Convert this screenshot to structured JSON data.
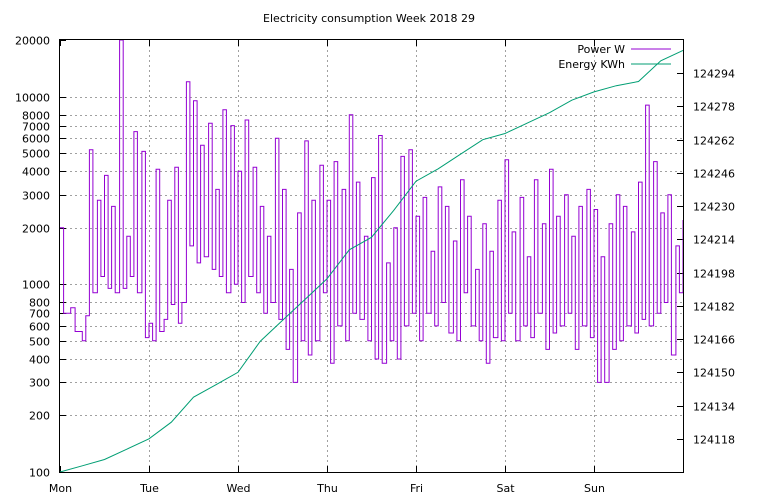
{
  "chart_data": {
    "type": "line",
    "title": "Electricity consumption Week 2018 29",
    "xlabel": "",
    "ylabel": "",
    "x_ticks": [
      "Mon",
      "Tue",
      "Wed",
      "Thu",
      "Fri",
      "Sat",
      "Sun"
    ],
    "xlim": [
      0,
      7
    ],
    "y_scale": "log",
    "ylim": [
      100,
      20000
    ],
    "y_ticks": [
      "100",
      "200",
      "300",
      "400",
      "500",
      "600",
      "700",
      "800",
      "1000",
      "2000",
      "3000",
      "4000",
      "5000",
      "6000",
      "7000",
      "8000",
      "10000",
      "20000"
    ],
    "y_tick_values": [
      100,
      200,
      300,
      400,
      500,
      600,
      700,
      800,
      1000,
      2000,
      3000,
      4000,
      5000,
      6000,
      7000,
      8000,
      10000,
      20000
    ],
    "y2lim": [
      124102,
      124310
    ],
    "y2_ticks": [
      "124118",
      "124134",
      "124150",
      "124166",
      "124182",
      "124198",
      "124214",
      "124230",
      "124246",
      "124262",
      "124278",
      "124294"
    ],
    "y2_tick_values": [
      124118,
      124134,
      124150,
      124166,
      124182,
      124198,
      124214,
      124230,
      124246,
      124262,
      124278,
      124294
    ],
    "grid": true,
    "legend_position": "top-right",
    "colors": {
      "power": "#9400d3",
      "energy": "#009e73"
    },
    "series": [
      {
        "name": "Power W",
        "axis": "left",
        "x": [
          0.0,
          0.04,
          0.08,
          0.12,
          0.17,
          0.21,
          0.25,
          0.29,
          0.33,
          0.37,
          0.42,
          0.46,
          0.5,
          0.54,
          0.58,
          0.62,
          0.67,
          0.71,
          0.75,
          0.79,
          0.83,
          0.87,
          0.92,
          0.96,
          1.0,
          1.04,
          1.08,
          1.12,
          1.17,
          1.21,
          1.25,
          1.29,
          1.33,
          1.37,
          1.42,
          1.46,
          1.5,
          1.54,
          1.58,
          1.62,
          1.67,
          1.71,
          1.75,
          1.79,
          1.83,
          1.87,
          1.92,
          1.96,
          2.0,
          2.04,
          2.08,
          2.12,
          2.17,
          2.21,
          2.25,
          2.29,
          2.33,
          2.37,
          2.42,
          2.46,
          2.5,
          2.54,
          2.58,
          2.62,
          2.67,
          2.71,
          2.75,
          2.79,
          2.83,
          2.87,
          2.92,
          2.96,
          3.0,
          3.04,
          3.08,
          3.12,
          3.17,
          3.21,
          3.25,
          3.29,
          3.33,
          3.37,
          3.42,
          3.46,
          3.5,
          3.54,
          3.58,
          3.62,
          3.67,
          3.71,
          3.75,
          3.79,
          3.83,
          3.87,
          3.92,
          3.96,
          4.0,
          4.04,
          4.08,
          4.12,
          4.17,
          4.21,
          4.25,
          4.29,
          4.33,
          4.37,
          4.42,
          4.46,
          4.5,
          4.54,
          4.58,
          4.62,
          4.67,
          4.71,
          4.75,
          4.79,
          4.83,
          4.87,
          4.92,
          4.96,
          5.0,
          5.04,
          5.08,
          5.12,
          5.17,
          5.21,
          5.25,
          5.29,
          5.33,
          5.37,
          5.42,
          5.46,
          5.5,
          5.54,
          5.58,
          5.62,
          5.67,
          5.71,
          5.75,
          5.79,
          5.83,
          5.87,
          5.92,
          5.96,
          6.0,
          6.04,
          6.08,
          6.12,
          6.17,
          6.21,
          6.25,
          6.29,
          6.33,
          6.37,
          6.42,
          6.46,
          6.5,
          6.54,
          6.58,
          6.62,
          6.67,
          6.71,
          6.75,
          6.79,
          6.83,
          6.87,
          6.92,
          6.96,
          7.0
        ],
        "values": [
          2000,
          700,
          700,
          750,
          560,
          560,
          500,
          680,
          5200,
          900,
          2800,
          1100,
          3800,
          950,
          2600,
          900,
          20000,
          950,
          1800,
          1100,
          6500,
          900,
          5100,
          520,
          620,
          500,
          4100,
          560,
          650,
          2800,
          780,
          4200,
          620,
          800,
          12000,
          1600,
          9500,
          1300,
          5500,
          1400,
          7200,
          1200,
          3200,
          1100,
          8500,
          900,
          7000,
          1000,
          4000,
          800,
          7500,
          1100,
          4200,
          900,
          2600,
          700,
          1800,
          800,
          6000,
          650,
          3200,
          450,
          1200,
          300,
          2400,
          500,
          5800,
          420,
          2800,
          500,
          4300,
          900,
          2800,
          380,
          4500,
          600,
          3200,
          500,
          8000,
          700,
          3500,
          650,
          1800,
          500,
          3700,
          400,
          6200,
          380,
          1300,
          500,
          2000,
          400,
          4800,
          600,
          5200,
          700,
          2300,
          500,
          2900,
          700,
          1500,
          600,
          3300,
          800,
          2600,
          550,
          1700,
          500,
          3600,
          900,
          2300,
          600,
          1200,
          500,
          2100,
          380,
          1500,
          520,
          2800,
          500,
          4600,
          700,
          1900,
          500,
          2900,
          600,
          1400,
          520,
          3600,
          700,
          2100,
          450,
          4100,
          550,
          2300,
          600,
          3000,
          700,
          1800,
          450,
          2600,
          600,
          3200,
          520,
          2500,
          300,
          1400,
          300,
          2100,
          450,
          3000,
          500,
          2600,
          600,
          1900,
          550,
          3500,
          650,
          9000,
          600,
          4500,
          700,
          2400,
          800,
          3000,
          420,
          1600,
          900,
          2200
        ]
      },
      {
        "name": "Energy KWh",
        "axis": "right",
        "x": [
          0.0,
          0.25,
          0.5,
          0.75,
          1.0,
          1.25,
          1.5,
          1.75,
          2.0,
          2.25,
          2.5,
          2.75,
          3.0,
          3.25,
          3.5,
          3.75,
          4.0,
          4.25,
          4.5,
          4.75,
          5.0,
          5.25,
          5.5,
          5.75,
          6.0,
          6.25,
          6.5,
          6.75,
          7.0
        ],
        "values": [
          124102,
          124105,
          124108,
          124113,
          124118,
          124126,
          124138,
          124144,
          124150,
          124165,
          124175,
          124185,
          124195,
          124209,
          124215,
          124228,
          124242,
          124248,
          124255,
          124262,
          124265,
          124270,
          124275,
          124281,
          124285,
          124288,
          124290,
          124300,
          124305
        ]
      }
    ]
  }
}
